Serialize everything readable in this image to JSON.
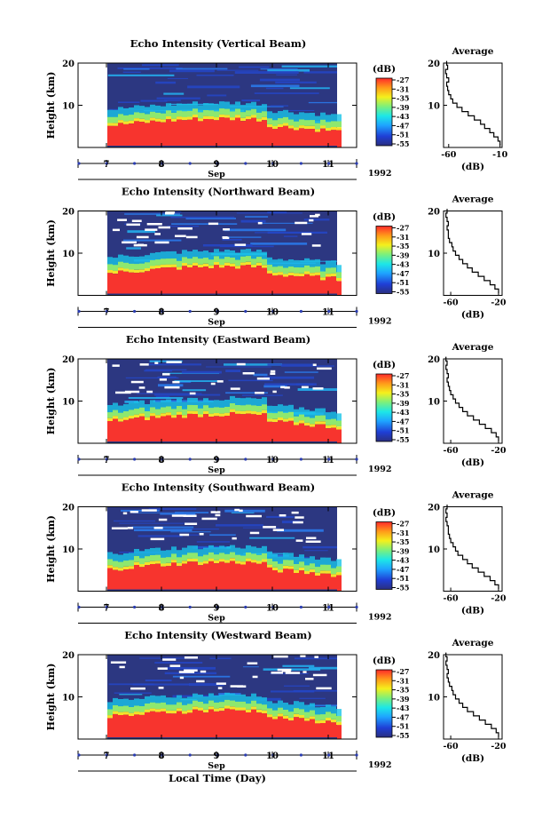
{
  "figure": {
    "xlabel": "Local Time (Day)",
    "month_label": "Sep",
    "year_label": "1992",
    "colorbar_unit": "(dB)",
    "avg_title": "Average",
    "avg_xlabel": "(dB)"
  },
  "chart_data": [
    {
      "type": "heatmap",
      "title": "Echo Intensity (Vertical Beam)",
      "ylabel": "Height (km)",
      "xlabel": "Sep",
      "x_ticks": [
        "7",
        "8",
        "9",
        "10",
        "11"
      ],
      "y_ticks": [
        10,
        20
      ],
      "ylim": [
        0,
        20
      ],
      "colorbar": {
        "unit": "(dB)",
        "ticks": [
          -27,
          -31,
          -35,
          -39,
          -43,
          -47,
          -51,
          -55
        ]
      },
      "average_profile": {
        "title": "Average",
        "xlabel": "(dB)",
        "xticks": [
          -60,
          -10
        ],
        "xlim": [
          -65,
          -8
        ],
        "height_km": [
          1,
          2,
          3,
          4,
          5,
          6,
          7,
          8,
          9,
          10,
          11,
          12,
          13,
          14,
          15,
          16,
          17,
          18,
          19,
          20
        ],
        "db": [
          -10,
          -12,
          -16,
          -20,
          -25,
          -29,
          -35,
          -41,
          -47,
          -52,
          -56,
          -58,
          -60,
          -61,
          -62,
          -60,
          -62,
          -63,
          -61,
          -62
        ]
      }
    },
    {
      "type": "heatmap",
      "title": "Echo Intensity (Northward Beam)",
      "ylabel": "Height (km)",
      "xlabel": "Sep",
      "x_ticks": [
        "7",
        "8",
        "9",
        "10",
        "11"
      ],
      "y_ticks": [
        10,
        20
      ],
      "ylim": [
        0,
        20
      ],
      "colorbar": {
        "unit": "(dB)",
        "ticks": [
          -27,
          -31,
          -35,
          -39,
          -43,
          -47,
          -51,
          -55
        ]
      },
      "average_profile": {
        "title": "Average",
        "xlabel": "(dB)",
        "xticks": [
          -60,
          -20
        ],
        "xlim": [
          -66,
          -17
        ],
        "height_km": [
          1,
          2,
          3,
          4,
          5,
          6,
          7,
          8,
          9,
          10,
          11,
          12,
          13,
          14,
          15,
          16,
          17,
          18,
          19,
          20
        ],
        "db": [
          -20,
          -23,
          -27,
          -32,
          -37,
          -42,
          -46,
          -50,
          -53,
          -56,
          -58,
          -59,
          -61,
          -62,
          -62,
          -63,
          -62,
          -63,
          -64,
          -63
        ]
      }
    },
    {
      "type": "heatmap",
      "title": "Echo Intensity (Eastward Beam)",
      "ylabel": "Height (km)",
      "xlabel": "Sep",
      "x_ticks": [
        "7",
        "8",
        "9",
        "10",
        "11"
      ],
      "y_ticks": [
        10,
        20
      ],
      "ylim": [
        0,
        20
      ],
      "colorbar": {
        "unit": "(dB)",
        "ticks": [
          -27,
          -31,
          -35,
          -39,
          -43,
          -47,
          -51,
          -55
        ]
      },
      "average_profile": {
        "title": "Average",
        "xlabel": "(dB)",
        "xticks": [
          -60,
          -20
        ],
        "xlim": [
          -66,
          -17
        ],
        "height_km": [
          1,
          2,
          3,
          4,
          5,
          6,
          7,
          8,
          9,
          10,
          11,
          12,
          13,
          14,
          15,
          16,
          17,
          18,
          19,
          20
        ],
        "db": [
          -20,
          -22,
          -26,
          -31,
          -36,
          -41,
          -46,
          -50,
          -53,
          -56,
          -58,
          -60,
          -61,
          -62,
          -63,
          -62,
          -63,
          -64,
          -63,
          -64
        ]
      }
    },
    {
      "type": "heatmap",
      "title": "Echo Intensity (Southward Beam)",
      "ylabel": "Height (km)",
      "xlabel": "Sep",
      "x_ticks": [
        "7",
        "8",
        "9",
        "10",
        "11"
      ],
      "y_ticks": [
        10,
        20
      ],
      "ylim": [
        0,
        20
      ],
      "colorbar": {
        "unit": "(dB)",
        "ticks": [
          -27,
          -31,
          -35,
          -39,
          -43,
          -47,
          -51,
          -55
        ]
      },
      "average_profile": {
        "title": "Average",
        "xlabel": "(dB)",
        "xticks": [
          -60,
          -20
        ],
        "xlim": [
          -66,
          -17
        ],
        "height_km": [
          1,
          2,
          3,
          4,
          5,
          6,
          7,
          8,
          9,
          10,
          11,
          12,
          13,
          14,
          15,
          16,
          17,
          18,
          19,
          20
        ],
        "db": [
          -20,
          -23,
          -27,
          -32,
          -37,
          -42,
          -46,
          -50,
          -54,
          -56,
          -58,
          -60,
          -61,
          -62,
          -62,
          -63,
          -64,
          -63,
          -64,
          -63
        ]
      }
    },
    {
      "type": "heatmap",
      "title": "Echo Intensity (Westward Beam)",
      "ylabel": "Height (km)",
      "xlabel": "Sep",
      "x_ticks": [
        "7",
        "8",
        "9",
        "10",
        "11"
      ],
      "y_ticks": [
        10,
        20
      ],
      "ylim": [
        0,
        20
      ],
      "colorbar": {
        "unit": "(dB)",
        "ticks": [
          -27,
          -31,
          -35,
          -39,
          -43,
          -47,
          -51,
          -55
        ]
      },
      "average_profile": {
        "title": "Average",
        "xlabel": "(dB)",
        "xticks": [
          -60,
          -20
        ],
        "xlim": [
          -66,
          -17
        ],
        "height_km": [
          1,
          2,
          3,
          4,
          5,
          6,
          7,
          8,
          9,
          10,
          11,
          12,
          13,
          14,
          15,
          16,
          17,
          18,
          19,
          20
        ],
        "db": [
          -20,
          -22,
          -26,
          -31,
          -36,
          -41,
          -46,
          -50,
          -53,
          -56,
          -58,
          -59,
          -61,
          -62,
          -63,
          -62,
          -63,
          -64,
          -63,
          -64
        ]
      }
    }
  ]
}
